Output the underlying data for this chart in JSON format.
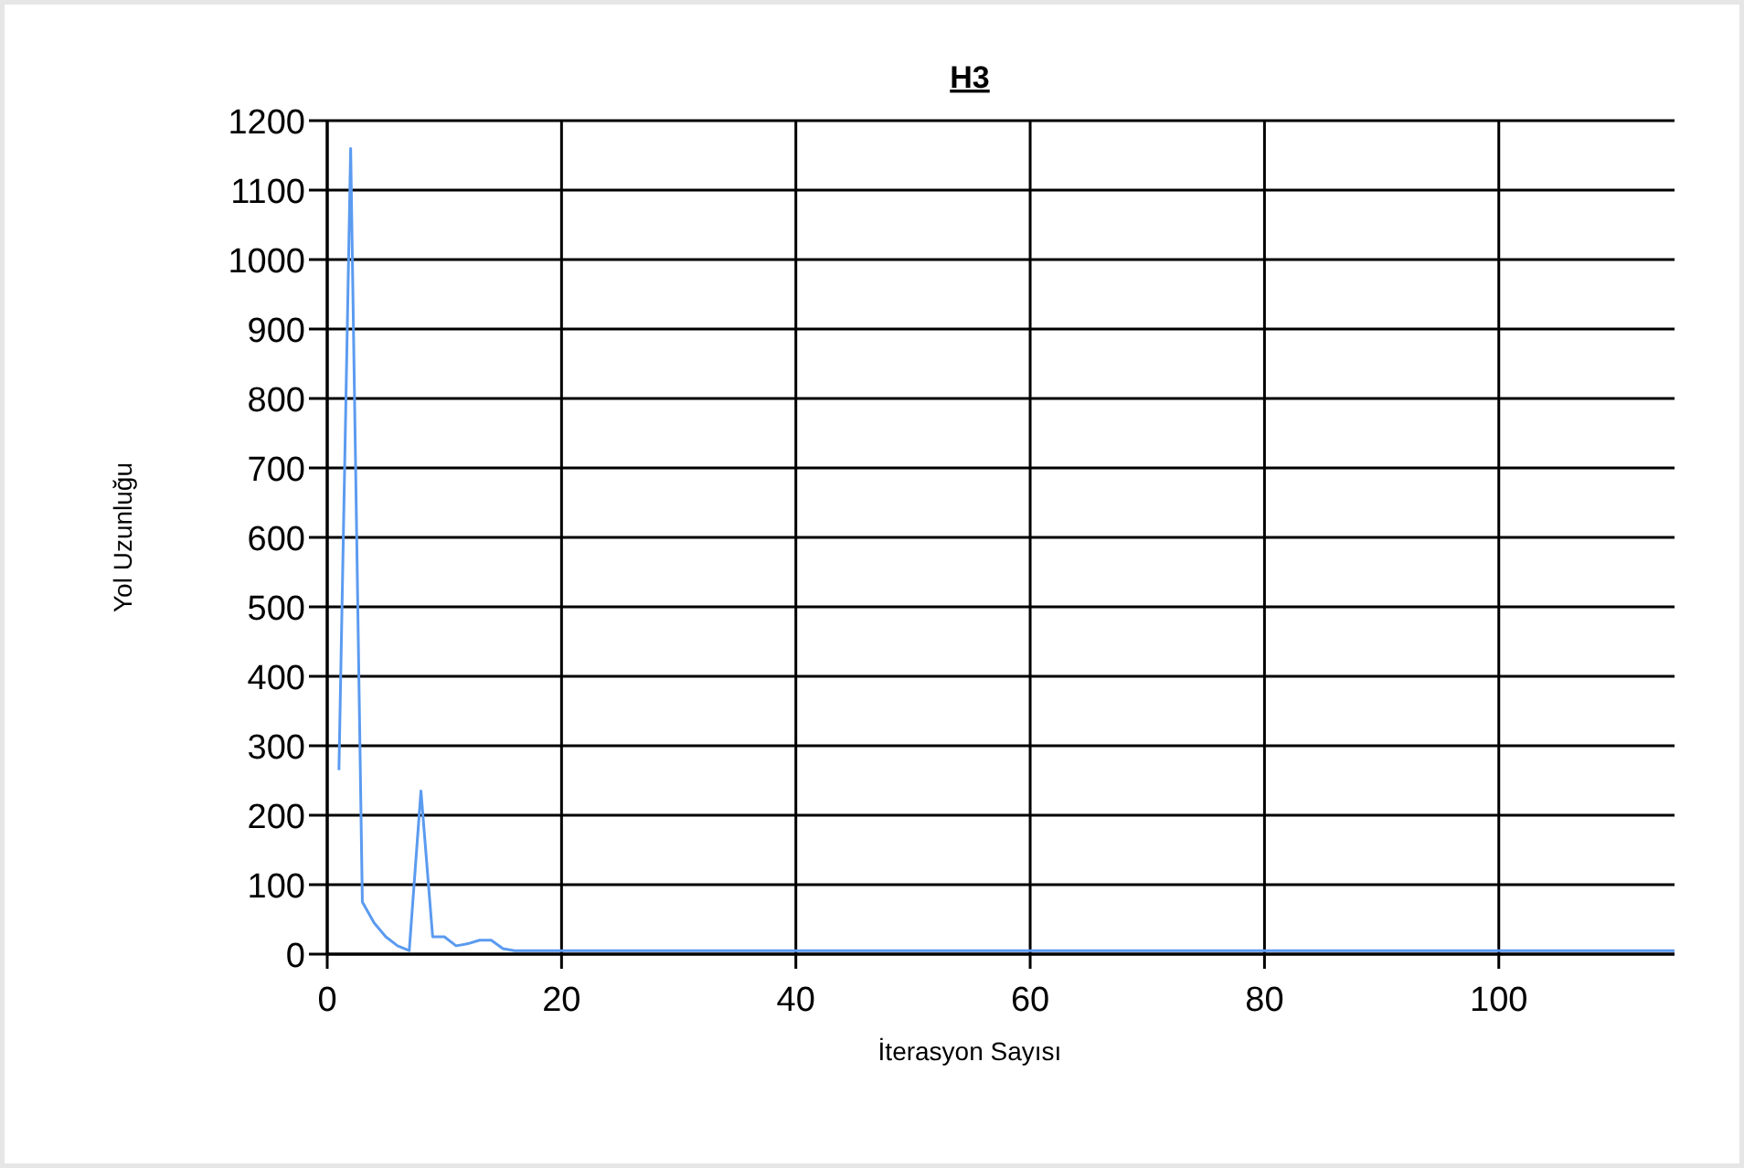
{
  "chart_data": {
    "type": "line",
    "title": "H3",
    "xlabel": "İterasyon Sayısı",
    "ylabel": "Yol Uzunluğu",
    "x": [
      1,
      2,
      3,
      4,
      5,
      6,
      7,
      8,
      9,
      10,
      11,
      12,
      13,
      14,
      15,
      16,
      20,
      30,
      40,
      50,
      60,
      70,
      80,
      90,
      100,
      110,
      115
    ],
    "series": [
      {
        "color": "#5b9bf0",
        "values": [
          265,
          1160,
          75,
          45,
          25,
          12,
          5,
          235,
          25,
          25,
          12,
          15,
          20,
          20,
          8,
          5,
          5,
          5,
          5,
          5,
          5,
          5,
          5,
          5,
          5,
          5,
          5
        ]
      }
    ],
    "xlim": [
      0,
      115
    ],
    "xticks": [
      0,
      20,
      40,
      60,
      80,
      100
    ],
    "ylim": [
      0,
      1200
    ],
    "yticks": [
      0,
      100,
      200,
      300,
      400,
      500,
      600,
      700,
      800,
      900,
      1000,
      1100,
      1200
    ],
    "grid": true
  }
}
